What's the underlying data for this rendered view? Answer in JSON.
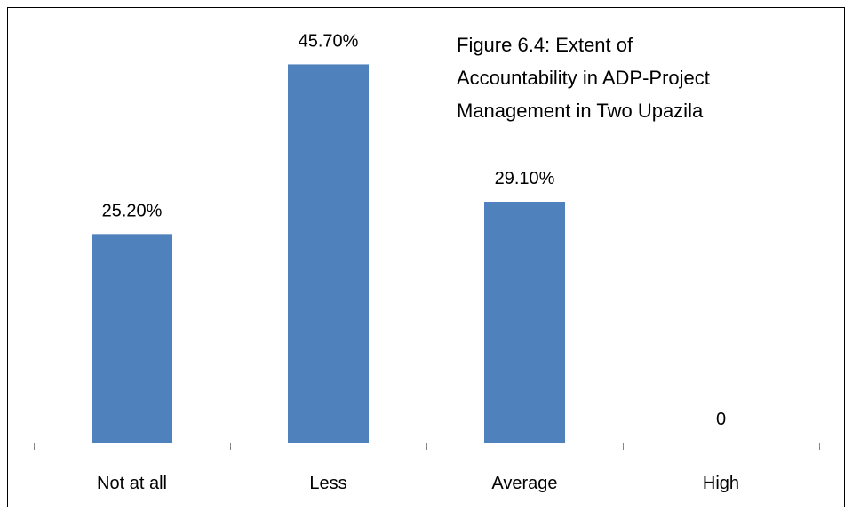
{
  "chart_data": {
    "type": "bar",
    "title_lines": [
      "Figure 6.4: Extent of",
      "Accountability in ADP-Project",
      "Management in Two Upazila"
    ],
    "categories": [
      "Not at all",
      "Less",
      "Average",
      "High"
    ],
    "values": [
      25.2,
      45.7,
      29.1,
      0
    ],
    "data_labels": [
      "25.20%",
      "45.70%",
      "29.10%",
      "0"
    ],
    "ylim": [
      0,
      50
    ],
    "grid": false,
    "legend": "none",
    "bar_color": "#4F81BD",
    "axis_color": "#868686"
  }
}
